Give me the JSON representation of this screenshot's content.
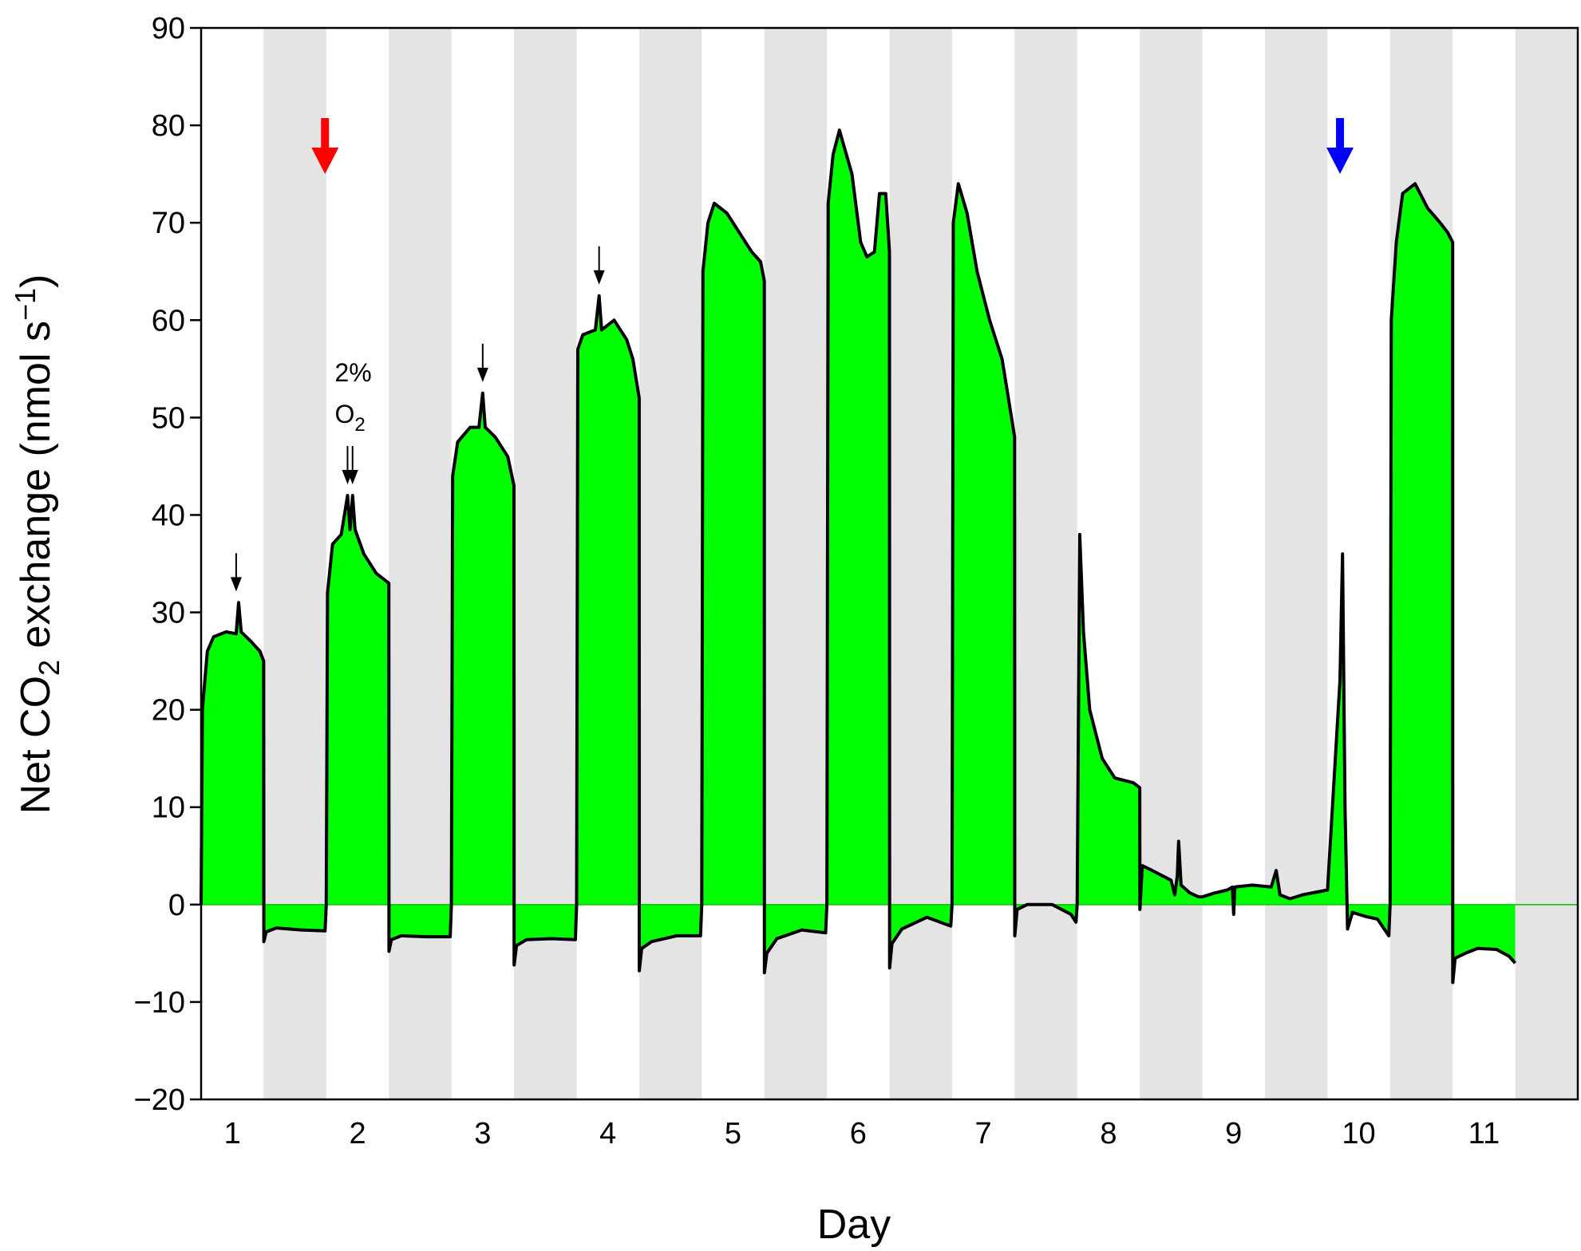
{
  "chart_data": {
    "type": "area",
    "xlabel": "Day",
    "ylabel": {
      "prefix": "Net CO",
      "subscript": "2",
      "middle": " exchange (nmol s",
      "superscript": "−1",
      "suffix": ")"
    },
    "xlim": [
      0,
      11
    ],
    "ylim": [
      -20,
      90
    ],
    "x_ticks": [
      {
        "value": 0.25,
        "label": "1"
      },
      {
        "value": 1.25,
        "label": "2"
      },
      {
        "value": 2.25,
        "label": "3"
      },
      {
        "value": 3.25,
        "label": "4"
      },
      {
        "value": 4.25,
        "label": "5"
      },
      {
        "value": 5.25,
        "label": "6"
      },
      {
        "value": 6.25,
        "label": "7"
      },
      {
        "value": 7.25,
        "label": "8"
      },
      {
        "value": 8.25,
        "label": "9"
      },
      {
        "value": 9.25,
        "label": "10"
      },
      {
        "value": 10.25,
        "label": "11"
      }
    ],
    "y_ticks": [
      {
        "value": 90,
        "label": "90"
      },
      {
        "value": 80,
        "label": "80"
      },
      {
        "value": 70,
        "label": "70"
      },
      {
        "value": 60,
        "label": "60"
      },
      {
        "value": 50,
        "label": "50"
      },
      {
        "value": 40,
        "label": "40"
      },
      {
        "value": 30,
        "label": "30"
      },
      {
        "value": 20,
        "label": "20"
      },
      {
        "value": 10,
        "label": "10"
      },
      {
        "value": 0,
        "label": "0"
      },
      {
        "value": -10,
        "label": "−10"
      },
      {
        "value": -20,
        "label": "−20"
      }
    ],
    "dark_periods": [
      [
        0.5,
        1.0
      ],
      [
        1.5,
        2.0
      ],
      [
        2.5,
        3.0
      ],
      [
        3.5,
        4.0
      ],
      [
        4.5,
        5.0
      ],
      [
        5.5,
        6.0
      ],
      [
        6.5,
        7.0
      ],
      [
        7.5,
        8.0
      ],
      [
        8.5,
        9.0
      ],
      [
        9.5,
        10.0
      ],
      [
        10.5,
        11.0
      ]
    ],
    "series": [
      {
        "values": [
          [
            0.0,
            0
          ],
          [
            0.01,
            20
          ],
          [
            0.05,
            26
          ],
          [
            0.1,
            27.5
          ],
          [
            0.2,
            28
          ],
          [
            0.28,
            27.8
          ],
          [
            0.3,
            31
          ],
          [
            0.32,
            28
          ],
          [
            0.4,
            27
          ],
          [
            0.47,
            26
          ],
          [
            0.5,
            25
          ],
          [
            0.501,
            -3.8
          ],
          [
            0.52,
            -2.8
          ],
          [
            0.6,
            -2.4
          ],
          [
            0.8,
            -2.6
          ],
          [
            0.99,
            -2.7
          ],
          [
            1.0,
            0
          ],
          [
            1.01,
            32
          ],
          [
            1.05,
            37
          ],
          [
            1.12,
            38
          ],
          [
            1.17,
            42
          ],
          [
            1.19,
            38.5
          ],
          [
            1.21,
            42
          ],
          [
            1.23,
            38.5
          ],
          [
            1.3,
            36
          ],
          [
            1.4,
            34
          ],
          [
            1.5,
            33
          ],
          [
            1.501,
            -4.8
          ],
          [
            1.52,
            -3.6
          ],
          [
            1.6,
            -3.2
          ],
          [
            1.8,
            -3.3
          ],
          [
            1.99,
            -3.3
          ],
          [
            2.0,
            0
          ],
          [
            2.01,
            44
          ],
          [
            2.05,
            47.5
          ],
          [
            2.15,
            49
          ],
          [
            2.22,
            49
          ],
          [
            2.25,
            52.5
          ],
          [
            2.27,
            49
          ],
          [
            2.35,
            48
          ],
          [
            2.45,
            46
          ],
          [
            2.5,
            43
          ],
          [
            2.501,
            -6.2
          ],
          [
            2.52,
            -4.2
          ],
          [
            2.6,
            -3.6
          ],
          [
            2.8,
            -3.5
          ],
          [
            2.99,
            -3.6
          ],
          [
            3.0,
            0
          ],
          [
            3.01,
            57
          ],
          [
            3.05,
            58.5
          ],
          [
            3.15,
            59
          ],
          [
            3.18,
            62.5
          ],
          [
            3.2,
            59
          ],
          [
            3.3,
            60
          ],
          [
            3.4,
            58
          ],
          [
            3.45,
            56
          ],
          [
            3.5,
            52
          ],
          [
            3.501,
            -6.8
          ],
          [
            3.52,
            -4.5
          ],
          [
            3.6,
            -3.8
          ],
          [
            3.8,
            -3.2
          ],
          [
            3.99,
            -3.2
          ],
          [
            4.0,
            0
          ],
          [
            4.01,
            65
          ],
          [
            4.05,
            70
          ],
          [
            4.1,
            72
          ],
          [
            4.2,
            71
          ],
          [
            4.3,
            69
          ],
          [
            4.4,
            67
          ],
          [
            4.47,
            66
          ],
          [
            4.5,
            64
          ],
          [
            4.501,
            -7
          ],
          [
            4.52,
            -5
          ],
          [
            4.6,
            -3.5
          ],
          [
            4.8,
            -2.6
          ],
          [
            4.99,
            -2.9
          ],
          [
            5.0,
            0
          ],
          [
            5.01,
            72
          ],
          [
            5.05,
            77
          ],
          [
            5.1,
            79.5
          ],
          [
            5.2,
            75
          ],
          [
            5.27,
            68
          ],
          [
            5.32,
            66.5
          ],
          [
            5.38,
            67
          ],
          [
            5.42,
            73
          ],
          [
            5.47,
            73
          ],
          [
            5.5,
            67
          ],
          [
            5.501,
            -6.5
          ],
          [
            5.52,
            -4
          ],
          [
            5.6,
            -2.5
          ],
          [
            5.8,
            -1.3
          ],
          [
            5.99,
            -2.2
          ],
          [
            6.0,
            0
          ],
          [
            6.01,
            70
          ],
          [
            6.05,
            74
          ],
          [
            6.12,
            71
          ],
          [
            6.2,
            65
          ],
          [
            6.3,
            60
          ],
          [
            6.4,
            56
          ],
          [
            6.45,
            52
          ],
          [
            6.5,
            48
          ],
          [
            6.501,
            -3.2
          ],
          [
            6.52,
            -0.5
          ],
          [
            6.6,
            0
          ],
          [
            6.8,
            0
          ],
          [
            6.95,
            -1
          ],
          [
            6.99,
            -1.8
          ],
          [
            7.0,
            0
          ],
          [
            7.02,
            38
          ],
          [
            7.05,
            28
          ],
          [
            7.1,
            20
          ],
          [
            7.2,
            15
          ],
          [
            7.3,
            13
          ],
          [
            7.45,
            12.5
          ],
          [
            7.5,
            12
          ],
          [
            7.501,
            -0.5
          ],
          [
            7.52,
            4
          ],
          [
            7.6,
            3.5
          ],
          [
            7.75,
            2.5
          ],
          [
            7.78,
            1
          ],
          [
            7.8,
            3
          ],
          [
            7.81,
            6.5
          ],
          [
            7.83,
            2
          ],
          [
            7.9,
            1.2
          ],
          [
            7.97,
            0.8
          ],
          [
            8.0,
            0.8
          ],
          [
            8.1,
            1.2
          ],
          [
            8.2,
            1.5
          ],
          [
            8.24,
            1.8
          ],
          [
            8.25,
            -1
          ],
          [
            8.26,
            1.8
          ],
          [
            8.4,
            2
          ],
          [
            8.55,
            1.8
          ],
          [
            8.59,
            3.5
          ],
          [
            8.62,
            1
          ],
          [
            8.7,
            0.6
          ],
          [
            8.8,
            1
          ],
          [
            9.0,
            1.5
          ],
          [
            9.1,
            23
          ],
          [
            9.12,
            36
          ],
          [
            9.14,
            10
          ],
          [
            9.16,
            -2.5
          ],
          [
            9.2,
            -0.8
          ],
          [
            9.3,
            -1.2
          ],
          [
            9.4,
            -1.5
          ],
          [
            9.49,
            -3.2
          ],
          [
            9.5,
            0
          ],
          [
            9.51,
            60
          ],
          [
            9.55,
            68
          ],
          [
            9.6,
            73
          ],
          [
            9.7,
            74
          ],
          [
            9.8,
            71.5
          ],
          [
            9.9,
            70
          ],
          [
            9.96,
            69
          ],
          [
            10.0,
            68
          ],
          [
            10.001,
            -8
          ],
          [
            10.02,
            -5.5
          ],
          [
            10.1,
            -5
          ],
          [
            10.2,
            -4.5
          ],
          [
            10.35,
            -4.6
          ],
          [
            10.45,
            -5.3
          ],
          [
            10.5,
            -6
          ]
        ]
      }
    ],
    "annotations": {
      "o2_label_line1": "2%",
      "o2_label_line2_main": "O",
      "o2_label_line2_sub": "2",
      "black_arrow_x": [
        0.28,
        1.17,
        1.21,
        2.25,
        3.18
      ],
      "red_arrow_x": 0.99,
      "blue_arrow_x": 9.1
    },
    "colors": {
      "fill": "#00ff00",
      "line": "#000000",
      "dark_band": "#e4e4e4",
      "red_arrow": "#ff0000",
      "blue_arrow": "#0000ff"
    }
  }
}
